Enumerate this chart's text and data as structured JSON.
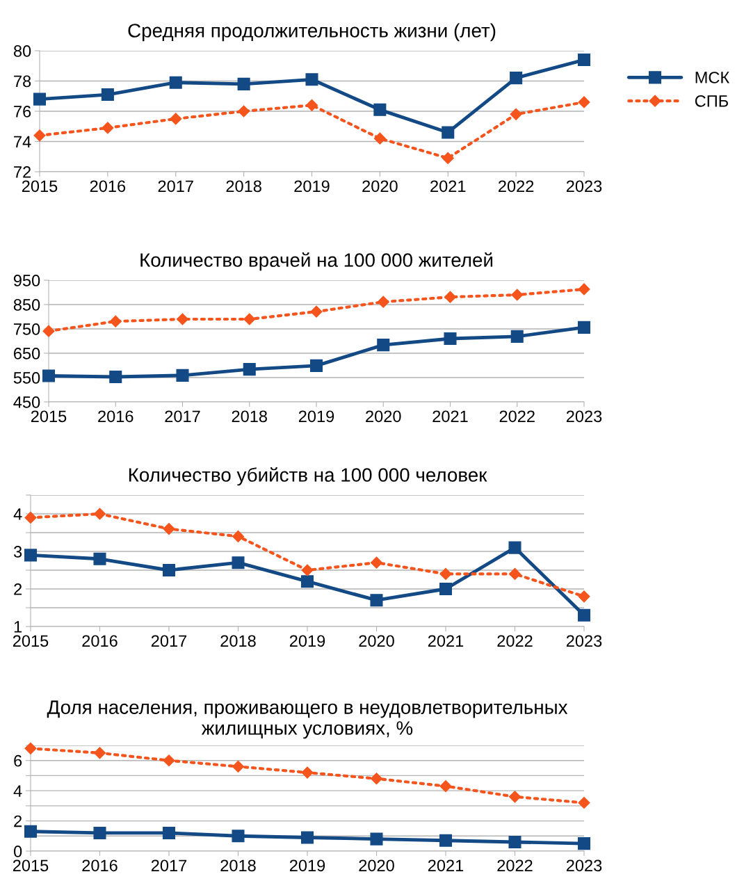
{
  "chart_data": [
    {
      "type": "line",
      "title": "Средняя продолжительность жизни (лет)",
      "x": [
        2015,
        2016,
        2017,
        2018,
        2019,
        2020,
        2021,
        2022,
        2023
      ],
      "xlim": [
        2015,
        2023
      ],
      "xticks": [
        2015,
        2016,
        2017,
        2018,
        2019,
        2020,
        2021,
        2022,
        2023
      ],
      "ylim": [
        72,
        80
      ],
      "yticks": [
        72,
        74,
        76,
        78,
        80
      ],
      "grid": "y",
      "legend": "right",
      "series": [
        {
          "name": "МСК",
          "color": "#134a85",
          "marker": "square",
          "line_style": "solid",
          "values": [
            76.8,
            77.1,
            77.9,
            77.8,
            78.1,
            76.1,
            74.6,
            78.2,
            79.4
          ]
        },
        {
          "name": "СПБ",
          "color": "#f5541d",
          "marker": "diamond",
          "line_style": "dotted",
          "values": [
            74.4,
            74.9,
            75.5,
            76.0,
            76.4,
            74.2,
            72.9,
            75.8,
            76.6
          ]
        }
      ]
    },
    {
      "type": "line",
      "title": "Количество врачей на 100 000 жителей",
      "x": [
        2015,
        2016,
        2017,
        2018,
        2019,
        2020,
        2021,
        2022,
        2023
      ],
      "xlim": [
        2015,
        2023
      ],
      "xticks": [
        2015,
        2016,
        2017,
        2018,
        2019,
        2020,
        2021,
        2022,
        2023
      ],
      "ylim": [
        450,
        950
      ],
      "yticks": [
        450,
        550,
        650,
        750,
        850,
        950
      ],
      "grid": "y",
      "legend": false,
      "series": [
        {
          "color": "#134a85",
          "marker": "square",
          "line_style": "solid",
          "values": [
            557,
            553,
            559,
            584,
            599,
            684,
            710,
            719,
            756
          ]
        },
        {
          "color": "#f5541d",
          "marker": "diamond",
          "line_style": "dotted",
          "values": [
            741,
            781,
            790,
            790,
            821,
            861,
            881,
            890,
            913
          ]
        }
      ]
    },
    {
      "type": "line",
      "title": "Количество убийств на 100 000 человек",
      "x": [
        2015,
        2016,
        2017,
        2018,
        2019,
        2020,
        2021,
        2022,
        2023
      ],
      "xlim": [
        2015,
        2023
      ],
      "xticks": [
        2015,
        2016,
        2017,
        2018,
        2019,
        2020,
        2021,
        2022,
        2023
      ],
      "ylim": [
        1,
        4.5
      ],
      "yticks": [
        1,
        {
          "value": 1.5,
          "label": null
        },
        2,
        {
          "value": 2.5,
          "label": null
        },
        3,
        {
          "value": 3.5,
          "label": null
        },
        4,
        {
          "value": 4.5,
          "label": null
        }
      ],
      "grid": "y",
      "legend": false,
      "series": [
        {
          "color": "#134a85",
          "marker": "square",
          "line_style": "solid",
          "values": [
            2.9,
            2.8,
            2.5,
            2.7,
            2.2,
            1.7,
            2.0,
            3.1,
            1.3
          ]
        },
        {
          "color": "#f5541d",
          "marker": "diamond",
          "line_style": "dotted",
          "values": [
            3.9,
            4.0,
            3.6,
            3.4,
            2.5,
            2.7,
            2.4,
            2.4,
            1.8
          ]
        }
      ]
    },
    {
      "type": "line",
      "title": "Доля населения, проживающего в неудовлетворительных жилищных условиях, %",
      "x": [
        2015,
        2016,
        2017,
        2018,
        2019,
        2020,
        2021,
        2022,
        2023
      ],
      "xlim": [
        2015,
        2023
      ],
      "xticks": [
        2015,
        2016,
        2017,
        2018,
        2019,
        2020,
        2021,
        2022,
        2023
      ],
      "ylim": [
        0,
        7
      ],
      "yticks": [
        0,
        {
          "value": 1,
          "label": null
        },
        2,
        {
          "value": 3,
          "label": null
        },
        4,
        {
          "value": 5,
          "label": null
        },
        6,
        {
          "value": 7,
          "label": null
        }
      ],
      "grid": "y",
      "legend": false,
      "series": [
        {
          "color": "#134a85",
          "marker": "square",
          "line_style": "solid",
          "values": [
            1.3,
            1.2,
            1.2,
            1.0,
            0.9,
            0.8,
            0.7,
            0.6,
            0.5
          ]
        },
        {
          "color": "#f5541d",
          "marker": "diamond",
          "line_style": "dotted",
          "values": [
            6.8,
            6.5,
            6.0,
            5.6,
            5.2,
            4.8,
            4.3,
            3.6,
            3.2
          ]
        }
      ]
    }
  ]
}
